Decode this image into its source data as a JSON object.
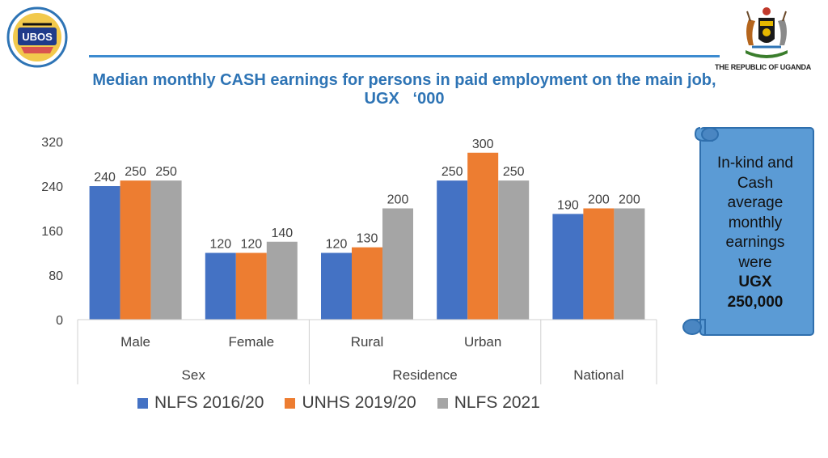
{
  "header": {
    "logo_text": "UBOS",
    "crest_text": "THE REPUBLIC OF UGANDA",
    "title_line1": "Median monthly CASH earnings for persons in paid employment on the main job,",
    "title_line2": "UGX   ‘000"
  },
  "callout": {
    "line1": "In-kind and",
    "line2": "Cash",
    "line3": "average",
    "line4": "monthly",
    "line5": "earnings",
    "line6": "were",
    "line7": "UGX",
    "line8": "250,000"
  },
  "colors": {
    "series1": "#4472c4",
    "series2": "#ed7d31",
    "series3": "#a5a5a5",
    "title": "#2e74b5",
    "callout_fill": "#5b9bd5"
  },
  "chart_data": {
    "type": "bar",
    "title": "Median monthly CASH earnings for persons in paid employment on the main job, UGX ‘000",
    "categories": [
      "Male",
      "Female",
      "Rural",
      "Urban",
      ""
    ],
    "groups": [
      {
        "label": "Sex",
        "categories": [
          "Male",
          "Female"
        ]
      },
      {
        "label": "Residence",
        "categories": [
          "Rural",
          "Urban"
        ]
      },
      {
        "label": "National",
        "categories": [
          ""
        ]
      }
    ],
    "series": [
      {
        "name": "NLFS 2016/20",
        "values": [
          240,
          120,
          120,
          250,
          190
        ]
      },
      {
        "name": "UNHS 2019/20",
        "values": [
          250,
          120,
          130,
          300,
          200
        ]
      },
      {
        "name": "NLFS 2021",
        "values": [
          250,
          140,
          200,
          250,
          200
        ]
      }
    ],
    "yticks": [
      "0",
      "80",
      "160",
      "240",
      "320"
    ],
    "ylim": [
      0,
      320
    ],
    "grid": false,
    "legend": "bottom",
    "data_labels": true
  }
}
